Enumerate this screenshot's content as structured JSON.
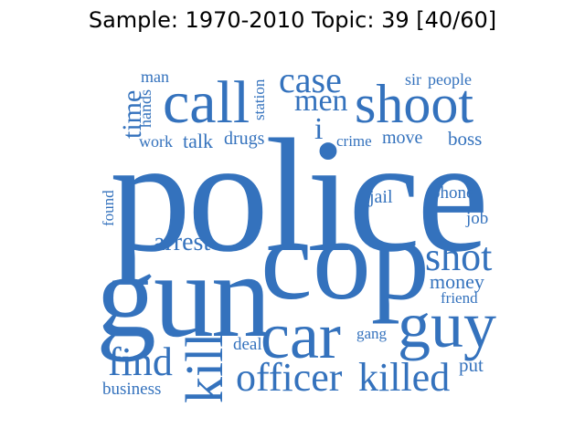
{
  "title": "Sample: 1970-2010 Topic: 39 [40/60]",
  "colors": {
    "word": "#3472bd",
    "background": "#ffffff",
    "title": "#000000"
  },
  "words": {
    "police": "police",
    "cop": "cop",
    "gun": "gun",
    "car": "car",
    "guy": "guy",
    "kill": "kill",
    "call": "call",
    "shoot": "shoot",
    "case": "case",
    "men": "men",
    "time": "time",
    "officer": "officer",
    "killed": "killed",
    "find": "find",
    "shot": "shot",
    "arrest": "arrest",
    "money": "money",
    "friend": "friend",
    "man": "man",
    "hands": "hands",
    "station": "station",
    "work": "work",
    "talk": "talk",
    "drugs": "drugs",
    "i": "i",
    "crime": "crime",
    "move": "move",
    "sir": "sir",
    "people": "people",
    "boss": "boss",
    "jail": "jail",
    "phone": "phone",
    "job": "job",
    "found": "found",
    "gang": "gang",
    "deal": "deal",
    "put": "put",
    "business": "business"
  }
}
